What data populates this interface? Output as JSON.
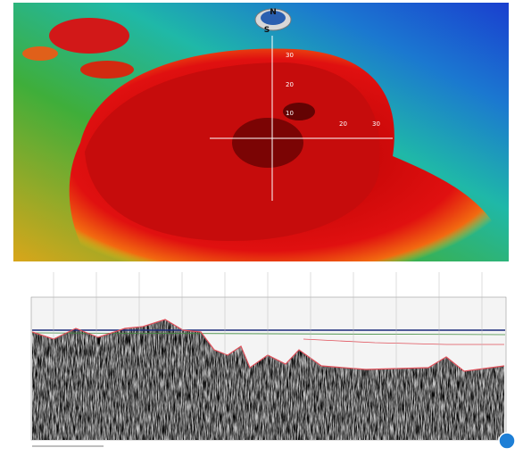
{
  "compass": {
    "north": "N",
    "south": "S"
  },
  "grid_labels": {
    "vertical": [
      "30",
      "20",
      "10"
    ],
    "horizontal": [
      "20",
      "30"
    ]
  }
}
